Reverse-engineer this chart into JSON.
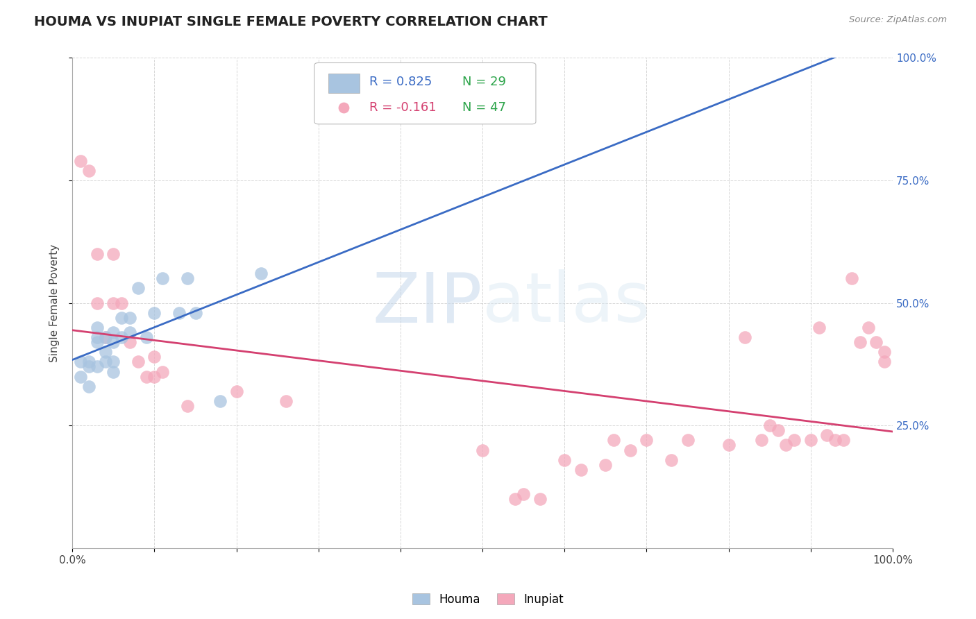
{
  "title": "HOUMA VS INUPIAT SINGLE FEMALE POVERTY CORRELATION CHART",
  "source": "Source: ZipAtlas.com",
  "ylabel": "Single Female Poverty",
  "houma_color": "#a8c4e0",
  "inupiat_color": "#f4a8bb",
  "houma_line_color": "#3a6bc4",
  "inupiat_line_color": "#d44070",
  "houma_R": 0.825,
  "houma_N": 29,
  "inupiat_R": -0.161,
  "inupiat_N": 47,
  "N_color": "#2ca44a",
  "background_color": "#ffffff",
  "grid_color": "#bbbbbb",
  "houma_x": [
    0.01,
    0.01,
    0.02,
    0.02,
    0.02,
    0.03,
    0.03,
    0.03,
    0.03,
    0.04,
    0.04,
    0.04,
    0.05,
    0.05,
    0.05,
    0.05,
    0.06,
    0.06,
    0.07,
    0.07,
    0.08,
    0.09,
    0.1,
    0.11,
    0.13,
    0.14,
    0.15,
    0.18,
    0.23
  ],
  "houma_y": [
    0.35,
    0.38,
    0.33,
    0.37,
    0.38,
    0.37,
    0.42,
    0.43,
    0.45,
    0.38,
    0.4,
    0.43,
    0.36,
    0.38,
    0.42,
    0.44,
    0.43,
    0.47,
    0.44,
    0.47,
    0.53,
    0.43,
    0.48,
    0.55,
    0.48,
    0.55,
    0.48,
    0.3,
    0.56
  ],
  "inupiat_x": [
    0.01,
    0.02,
    0.03,
    0.03,
    0.04,
    0.05,
    0.05,
    0.06,
    0.07,
    0.08,
    0.09,
    0.1,
    0.1,
    0.11,
    0.14,
    0.2,
    0.26,
    0.5,
    0.54,
    0.55,
    0.57,
    0.6,
    0.62,
    0.65,
    0.66,
    0.68,
    0.7,
    0.73,
    0.75,
    0.8,
    0.82,
    0.84,
    0.85,
    0.86,
    0.87,
    0.88,
    0.9,
    0.91,
    0.92,
    0.93,
    0.94,
    0.95,
    0.96,
    0.97,
    0.98,
    0.99,
    0.99
  ],
  "inupiat_y": [
    0.79,
    0.77,
    0.5,
    0.6,
    0.43,
    0.5,
    0.6,
    0.5,
    0.42,
    0.38,
    0.35,
    0.39,
    0.35,
    0.36,
    0.29,
    0.32,
    0.3,
    0.2,
    0.1,
    0.11,
    0.1,
    0.18,
    0.16,
    0.17,
    0.22,
    0.2,
    0.22,
    0.18,
    0.22,
    0.21,
    0.43,
    0.22,
    0.25,
    0.24,
    0.21,
    0.22,
    0.22,
    0.45,
    0.23,
    0.22,
    0.22,
    0.55,
    0.42,
    0.45,
    0.42,
    0.4,
    0.38
  ],
  "xlim": [
    0.0,
    1.0
  ],
  "ylim": [
    0.0,
    1.0
  ],
  "ytick_positions": [
    0.25,
    0.5,
    0.75,
    1.0
  ],
  "ytick_labels_right": [
    "25.0%",
    "50.0%",
    "75.0%",
    "100.0%"
  ]
}
